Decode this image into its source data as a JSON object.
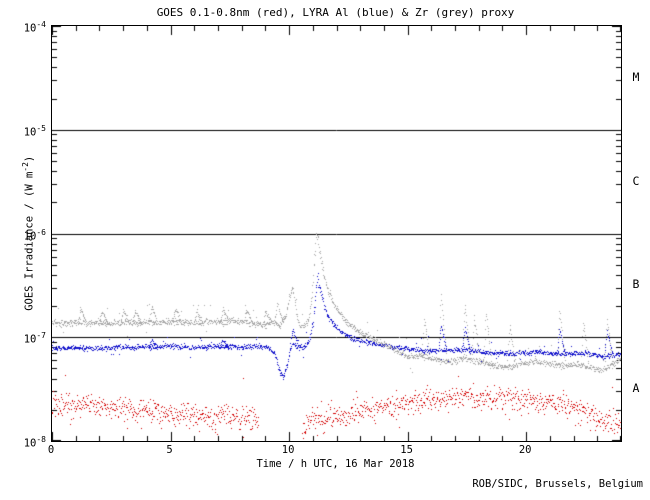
{
  "header": {
    "title": "GOES 0.1-0.8nm (red), LYRA Al (blue) & Zr (grey) proxy"
  },
  "footer": {
    "attribution": "ROB/SIDC, Brussels, Belgium"
  },
  "chart_data": {
    "type": "scatter",
    "title": "GOES 0.1-0.8nm (red), LYRA Al (blue) & Zr (grey) proxy",
    "xlabel": "Time / h UTC, 16 Mar 2018",
    "ylabel": {
      "pre": "GOES Irradiance / (W m",
      "sup": "-2",
      "post": ")"
    },
    "xlim": [
      0,
      24
    ],
    "x_major_ticks": [
      0,
      5,
      10,
      15,
      20
    ],
    "x_tick_labels": [
      "0",
      "5",
      "10",
      "15",
      "20"
    ],
    "x_minor_step": 1,
    "y_scale": "log",
    "y_exp_range": [
      -8,
      -4
    ],
    "y_ticks": [
      {
        "base": "10",
        "exp": "-4"
      },
      {
        "base": "10",
        "exp": "-5"
      },
      {
        "base": "10",
        "exp": "-6"
      },
      {
        "base": "10",
        "exp": "-7"
      },
      {
        "base": "10",
        "exp": "-8"
      }
    ],
    "grid_hlines_exp": [
      -5,
      -6,
      -7
    ],
    "flare_classes": [
      {
        "label": "M",
        "exp_band": [
          -5,
          -4
        ]
      },
      {
        "label": "C",
        "exp_band": [
          -6,
          -5
        ]
      },
      {
        "label": "B",
        "exp_band": [
          -7,
          -6
        ]
      },
      {
        "label": "A",
        "exp_band": [
          -8,
          -7
        ]
      }
    ],
    "legend": "colors: GOES=red, LYRA Al=blue, LYRA Zr=grey (encoded in title)",
    "series": [
      {
        "name": "GOES 0.1-0.8nm",
        "color": "#d40000",
        "points_per_hour": 55,
        "noise_log_sigma": 0.055,
        "outlier_rate": 0.035,
        "outlier_log": 0.24,
        "outlier_up_frac": 0.35,
        "gaps": [
          [
            8.72,
            10.55
          ]
        ],
        "spikes": [],
        "trend": [
          [
            0,
            2.2e-08
          ],
          [
            0.5,
            2.3e-08
          ],
          [
            1,
            2.1e-08
          ],
          [
            1.5,
            2.3e-08
          ],
          [
            2,
            2.2e-08
          ],
          [
            2.5,
            2e-08
          ],
          [
            3,
            2.1e-08
          ],
          [
            3.5,
            2e-08
          ],
          [
            4,
            2.1e-08
          ],
          [
            4.5,
            1.9e-08
          ],
          [
            5,
            1.8e-08
          ],
          [
            5.5,
            1.9e-08
          ],
          [
            6,
            1.8e-08
          ],
          [
            6.5,
            1.7e-08
          ],
          [
            7,
            1.8e-08
          ],
          [
            7.5,
            1.7e-08
          ],
          [
            8,
            1.75e-08
          ],
          [
            8.7,
            1.6e-08
          ],
          [
            10.56,
            1.15e-08
          ],
          [
            10.8,
            1.5e-08
          ],
          [
            11,
            1.6e-08
          ],
          [
            11.5,
            1.6e-08
          ],
          [
            12,
            1.7e-08
          ],
          [
            12.5,
            1.8e-08
          ],
          [
            13,
            2e-08
          ],
          [
            13.5,
            2.1e-08
          ],
          [
            14,
            2.2e-08
          ],
          [
            14.5,
            2.3e-08
          ],
          [
            15,
            2.4e-08
          ],
          [
            15.5,
            2.5e-08
          ],
          [
            16,
            2.4e-08
          ],
          [
            16.5,
            2.5e-08
          ],
          [
            17,
            2.6e-08
          ],
          [
            17.5,
            2.7e-08
          ],
          [
            18,
            2.6e-08
          ],
          [
            18.5,
            2.7e-08
          ],
          [
            19,
            2.6e-08
          ],
          [
            19.5,
            2.5e-08
          ],
          [
            20,
            2.5e-08
          ],
          [
            20.5,
            2.4e-08
          ],
          [
            21,
            2.3e-08
          ],
          [
            21.5,
            2.2e-08
          ],
          [
            22,
            2.1e-08
          ],
          [
            22.5,
            1.9e-08
          ],
          [
            23,
            1.7e-08
          ],
          [
            23.3,
            1.5e-08
          ],
          [
            23.6,
            1.6e-08
          ],
          [
            24,
            1.4e-08
          ]
        ]
      },
      {
        "name": "LYRA Al proxy",
        "color": "#1414cc",
        "points_per_hour": 65,
        "noise_log_sigma": 0.012,
        "outlier_rate": 0.02,
        "outlier_log": 0.12,
        "outlier_up_frac": 0.6,
        "gaps": [],
        "spikes": [
          [
            4.2,
            9.5e-08
          ],
          [
            7.2,
            9.5e-08
          ],
          [
            10.15,
            1.2e-07
          ],
          [
            16.4,
            1.3e-07
          ],
          [
            17.4,
            1.25e-07
          ],
          [
            21.4,
            1.2e-07
          ],
          [
            23.4,
            1.15e-07
          ]
        ],
        "trend": [
          [
            0,
            7.9e-08
          ],
          [
            1,
            8e-08
          ],
          [
            2,
            7.8e-08
          ],
          [
            3,
            8.1e-08
          ],
          [
            4,
            8e-08
          ],
          [
            5,
            8.3e-08
          ],
          [
            6,
            8e-08
          ],
          [
            7,
            8.2e-08
          ],
          [
            8,
            8.1e-08
          ],
          [
            8.7,
            8.3e-08
          ],
          [
            9.1,
            8e-08
          ],
          [
            9.4,
            7e-08
          ],
          [
            9.6,
            4.6e-08
          ],
          [
            9.75,
            4.2e-08
          ],
          [
            9.95,
            6e-08
          ],
          [
            10.1,
            8.8e-08
          ],
          [
            10.25,
            8.2e-08
          ],
          [
            10.6,
            8e-08
          ],
          [
            10.85,
            9.5e-08
          ],
          [
            11.0,
            1.4e-07
          ],
          [
            11.1,
            2.4e-07
          ],
          [
            11.2,
            4e-07
          ],
          [
            11.3,
            3e-07
          ],
          [
            11.45,
            2.1e-07
          ],
          [
            11.65,
            1.55e-07
          ],
          [
            11.9,
            1.3e-07
          ],
          [
            12.2,
            1.12e-07
          ],
          [
            12.6,
            1e-07
          ],
          [
            13.1,
            9.2e-08
          ],
          [
            13.7,
            8.6e-08
          ],
          [
            14.5,
            8e-08
          ],
          [
            15.5,
            7.6e-08
          ],
          [
            16.5,
            7.4e-08
          ],
          [
            17.5,
            7.6e-08
          ],
          [
            18.5,
            7.1e-08
          ],
          [
            19.5,
            7e-08
          ],
          [
            20.5,
            7.2e-08
          ],
          [
            21.5,
            6.9e-08
          ],
          [
            22.5,
            7.1e-08
          ],
          [
            23.2,
            6.6e-08
          ],
          [
            24,
            7e-08
          ]
        ]
      },
      {
        "name": "LYRA Zr proxy",
        "color": "#a8a8a8",
        "points_per_hour": 65,
        "noise_log_sigma": 0.015,
        "outlier_rate": 0.03,
        "outlier_log": 0.18,
        "outlier_up_frac": 0.85,
        "gaps": [],
        "spikes": [
          [
            1.2,
            1.9e-07
          ],
          [
            2.1,
            1.8e-07
          ],
          [
            3.0,
            1.85e-07
          ],
          [
            3.5,
            1.8e-07
          ],
          [
            4.2,
            2e-07
          ],
          [
            5.2,
            1.9e-07
          ],
          [
            6.1,
            1.8e-07
          ],
          [
            7.2,
            1.9e-07
          ],
          [
            8.2,
            1.85e-07
          ],
          [
            9.0,
            1.8e-07
          ],
          [
            9.5,
            2.2e-07
          ],
          [
            15.7,
            1.5e-07
          ],
          [
            16.4,
            2.6e-07
          ],
          [
            17.4,
            2.1e-07
          ],
          [
            17.8,
            1.6e-07
          ],
          [
            18.3,
            1.7e-07
          ],
          [
            19.3,
            1.3e-07
          ],
          [
            21.4,
            1.8e-07
          ],
          [
            22.4,
            1.4e-07
          ],
          [
            23.4,
            1.5e-07
          ]
        ],
        "trend": [
          [
            0,
            1.38e-07
          ],
          [
            0.5,
            1.36e-07
          ],
          [
            1,
            1.4e-07
          ],
          [
            1.5,
            1.37e-07
          ],
          [
            2,
            1.4e-07
          ],
          [
            2.5,
            1.36e-07
          ],
          [
            3,
            1.42e-07
          ],
          [
            3.5,
            1.38e-07
          ],
          [
            4,
            1.42e-07
          ],
          [
            4.5,
            1.4e-07
          ],
          [
            5,
            1.44e-07
          ],
          [
            5.5,
            1.4e-07
          ],
          [
            6,
            1.38e-07
          ],
          [
            6.5,
            1.42e-07
          ],
          [
            7,
            1.4e-07
          ],
          [
            7.5,
            1.44e-07
          ],
          [
            8,
            1.42e-07
          ],
          [
            8.5,
            1.38e-07
          ],
          [
            9,
            1.3e-07
          ],
          [
            9.3,
            1.45e-07
          ],
          [
            9.6,
            1.3e-07
          ],
          [
            9.85,
            1.6e-07
          ],
          [
            10.0,
            2.4e-07
          ],
          [
            10.15,
            3.1e-07
          ],
          [
            10.3,
            1.7e-07
          ],
          [
            10.45,
            1.3e-07
          ],
          [
            10.6,
            1.25e-07
          ],
          [
            10.8,
            1.45e-07
          ],
          [
            10.95,
            2.5e-07
          ],
          [
            11.05,
            5.5e-07
          ],
          [
            11.15,
            1.05e-06
          ],
          [
            11.25,
            7.5e-07
          ],
          [
            11.4,
            4.6e-07
          ],
          [
            11.6,
            3e-07
          ],
          [
            11.85,
            2.2e-07
          ],
          [
            12.15,
            1.65e-07
          ],
          [
            12.5,
            1.35e-07
          ],
          [
            12.9,
            1.15e-07
          ],
          [
            13.4,
            1e-07
          ],
          [
            13.9,
            8.8e-08
          ],
          [
            14.4,
            7.6e-08
          ],
          [
            15,
            6.6e-08
          ],
          [
            15.5,
            6.8e-08
          ],
          [
            16,
            6.2e-08
          ],
          [
            16.8,
            5.8e-08
          ],
          [
            17.4,
            6.4e-08
          ],
          [
            18,
            5.8e-08
          ],
          [
            18.6,
            5.4e-08
          ],
          [
            19.2,
            5.2e-08
          ],
          [
            19.8,
            5.6e-08
          ],
          [
            20.4,
            5.9e-08
          ],
          [
            21,
            5.6e-08
          ],
          [
            21.6,
            5.3e-08
          ],
          [
            22.2,
            5.6e-08
          ],
          [
            22.8,
            5e-08
          ],
          [
            23.3,
            4.9e-08
          ],
          [
            23.7,
            5.6e-08
          ],
          [
            24,
            6.4e-08
          ]
        ]
      }
    ]
  }
}
